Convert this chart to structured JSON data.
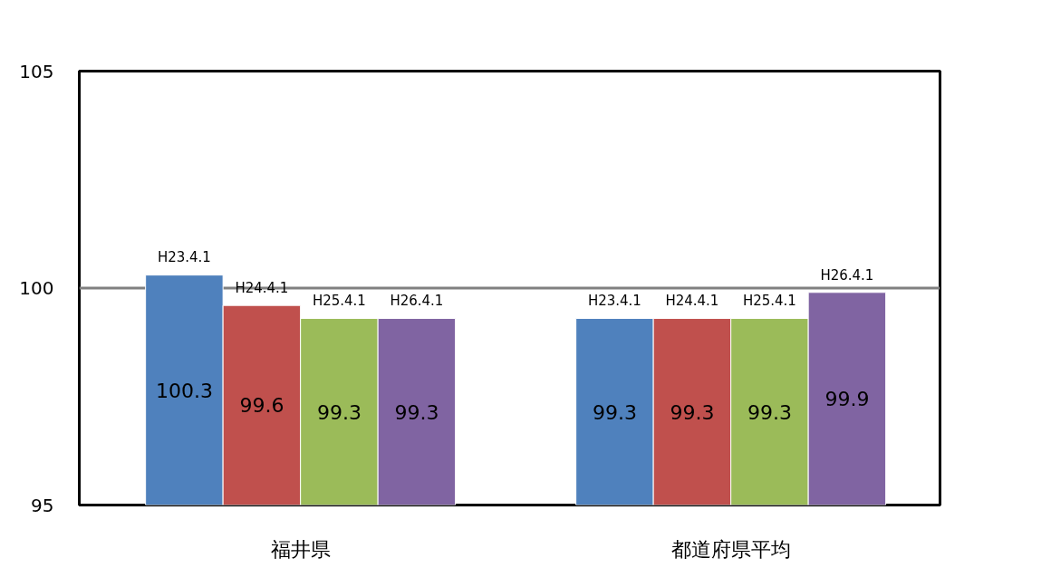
{
  "chart_data": {
    "type": "bar",
    "categories": [
      "福井県",
      "都道府県平均"
    ],
    "series": [
      {
        "name": "H23.4.1",
        "color": "#4f81bd",
        "values": [
          100.3,
          99.3
        ]
      },
      {
        "name": "H24.4.1",
        "color": "#c0504d",
        "values": [
          99.6,
          99.3
        ]
      },
      {
        "name": "H25.4.1",
        "color": "#9bbb59",
        "values": [
          99.3,
          99.3
        ]
      },
      {
        "name": "H26.4.1",
        "color": "#8064a2",
        "values": [
          99.3,
          99.9
        ]
      }
    ],
    "ylim": [
      95,
      105
    ],
    "yticks": [
      95,
      100,
      105
    ],
    "grid": false,
    "data_labels": true,
    "ref_lines": [
      {
        "axis": "y",
        "value": 100,
        "color": "#808080"
      }
    ]
  }
}
